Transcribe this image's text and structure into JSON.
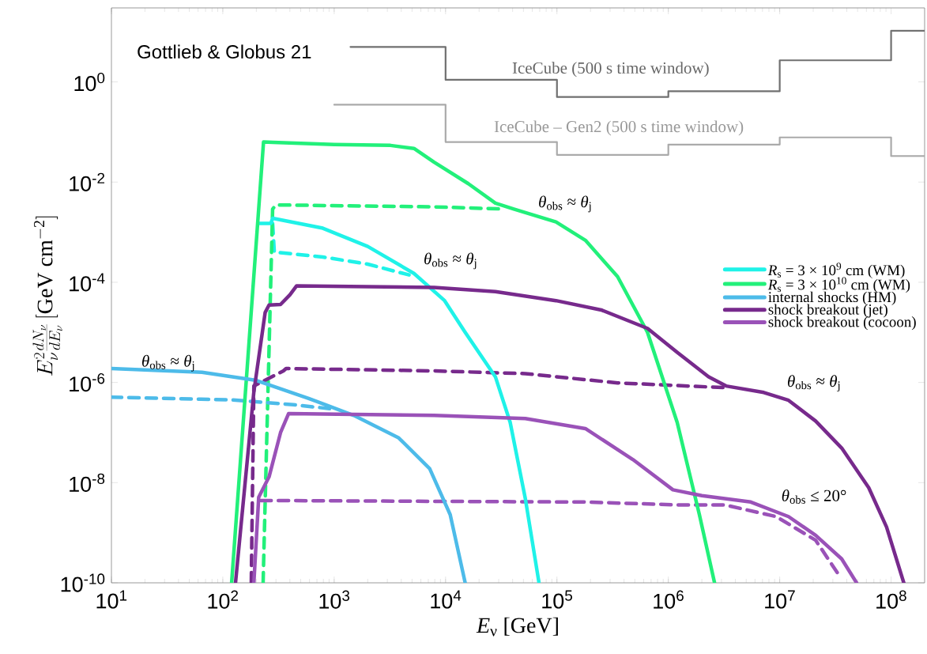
{
  "chart_data": {
    "type": "line",
    "xlabel": "*E*$_{ν}$ [GeV]",
    "ylabel": "E_\\nu^2\\frac{dN_\\nu}{dE_\\nu}\\,[\\mathrm{GeV\\ cm^{-2}}]",
    "log": "xy",
    "xlim": [
      10,
      200000000
    ],
    "ylim": [
      1e-10,
      30
    ],
    "xticks": [
      {
        "value": 10,
        "label": "10$^{1}$"
      },
      {
        "value": 100,
        "label": "10$^{2}$"
      },
      {
        "value": 1000,
        "label": "10$^{3}$"
      },
      {
        "value": 10000,
        "label": "10$^{4}$"
      },
      {
        "value": 100000,
        "label": "10$^{5}$"
      },
      {
        "value": 1000000,
        "label": "10$^{6}$"
      },
      {
        "value": 10000000,
        "label": "10$^{7}$"
      },
      {
        "value": 100000000,
        "label": "10$^{8}$"
      }
    ],
    "yticks": [
      {
        "value": 1e-10,
        "label": "10$^{-10}$"
      },
      {
        "value": 1e-08,
        "label": "10$^{-8}$"
      },
      {
        "value": 1e-06,
        "label": "10$^{-6}$"
      },
      {
        "value": 0.0001,
        "label": "10$^{-4}$"
      },
      {
        "value": 0.01,
        "label": "10$^{-2}$"
      },
      {
        "value": 1,
        "label": "10$^{0}$"
      }
    ],
    "legend": "right",
    "marker": "none",
    "series": [
      {
        "type": "step",
        "color": "#707070",
        "line_style": "solid",
        "x": [
          1400,
          10000,
          100000,
          1000000,
          10000000,
          100000000,
          200000000
        ],
        "values": [
          5.0,
          1.1,
          0.5,
          0.65,
          2.7,
          10.5,
          10.5
        ]
      },
      {
        "type": "step",
        "color": "#aaaaaa",
        "line_style": "solid",
        "x": [
          1000,
          10000,
          100000,
          1000000,
          10000000,
          100000000,
          200000000
        ],
        "values": [
          0.35,
          0.063,
          0.035,
          0.056,
          0.078,
          0.033,
          0.033
        ]
      },
      {
        "color": "#1ff2e8",
        "line_style": "dashed",
        "x": [
          280,
          290,
          790,
          2000,
          4700
        ],
        "values": [
          0.0015,
          0.0004,
          0.00032,
          0.00023,
          0.00014
        ]
      },
      {
        "color": "#22f07a",
        "line_style": "dashed",
        "x": [
          230,
          280,
          300,
          7900,
          34000
        ],
        "values": [
          1e-10,
          0.0029,
          0.0035,
          0.0032,
          0.0029
        ]
      },
      {
        "color": "#4dbbe9",
        "line_style": "dashed",
        "x": [
          10,
          120,
          430,
          910
        ],
        "values": [
          5.1e-07,
          4.5e-07,
          3.6e-07,
          3e-07
        ]
      },
      {
        "color": "#772a8c",
        "line_style": "dashed",
        "x": [
          180,
          190,
          350,
          370,
          7900,
          52000,
          350000,
          3100000
        ],
        "values": [
          1e-10,
          8.5e-07,
          1.7e-06,
          1.9e-06,
          1.7e-06,
          1.5e-06,
          9.8e-07,
          7.9e-07
        ]
      },
      {
        "color": "#9a52b8",
        "line_style": "dashed",
        "x": [
          220,
          180000,
          1200000,
          3200000,
          9300000,
          21000000,
          35000000
        ],
        "values": [
          4.4e-09,
          4.1e-09,
          3.6e-09,
          3.6e-09,
          2.1e-09,
          7.1e-10,
          1.3e-10
        ]
      },
      {
        "name": "*R*$_{s}$ = 3 × 10$^{9}$ cm (WM)",
        "color": "#1ff2e8",
        "line_style": "solid",
        "x": [
          210,
          270,
          280,
          790,
          2000,
          5200,
          9800,
          15000,
          28000,
          38000,
          52000,
          69000
        ],
        "values": [
          0.0015,
          0.0015,
          0.0019,
          0.0012,
          0.00052,
          0.00015,
          4.3e-05,
          1e-05,
          1.3e-06,
          1.6e-07,
          4.8e-09,
          1e-10
        ]
      },
      {
        "name": "*R*$_{s}$ = 3 × 10$^{10}$ cm (WM)",
        "color": "#22f07a",
        "line_style": "solid",
        "x": [
          120,
          232,
          282,
          1000,
          3200,
          5200,
          7900,
          16000,
          28000,
          41000,
          98000,
          180000,
          350000,
          650000,
          1200000,
          1900000,
          2600000
        ],
        "values": [
          1e-10,
          0.063,
          0.062,
          0.056,
          0.054,
          0.047,
          0.025,
          0.0093,
          0.0038,
          0.0029,
          0.0016,
          0.00069,
          0.00013,
          1e-05,
          1.6e-07,
          2.3e-09,
          1e-10
        ]
      },
      {
        "name": "internal shocks (HM)",
        "color": "#4dbbe9",
        "line_style": "solid",
        "x": [
          10,
          65,
          200,
          590,
          1500,
          3800,
          7200,
          11000,
          15000
        ],
        "values": [
          1.9e-06,
          1.6e-06,
          1.1e-06,
          4.8e-07,
          2.2e-07,
          7.8e-08,
          1.9e-08,
          2.3e-09,
          1e-10
        ]
      },
      {
        "name": "shock breakout (jet)",
        "color": "#772a8c",
        "line_style": "solid",
        "x": [
          130,
          190,
          240,
          260,
          330,
          400,
          460,
          7900,
          28000,
          98000,
          250000,
          650000,
          1200000,
          2300000,
          3300000,
          7200000,
          12000000,
          21000000,
          36000000,
          63000000,
          91000000,
          130000000
        ],
        "values": [
          1e-10,
          6.5e-07,
          2.5e-05,
          3.5e-05,
          3.6e-05,
          5.6e-05,
          8.5e-05,
          7.9e-05,
          6.5e-05,
          4.3e-05,
          2.8e-05,
          1.2e-05,
          4e-06,
          1.3e-06,
          8.5e-07,
          6.3e-07,
          4.4e-07,
          1.7e-07,
          4.9e-08,
          7.9e-09,
          1.3e-09,
          1e-10
        ]
      },
      {
        "name": "shock breakout (cocoon)",
        "color": "#9a52b8",
        "line_style": "solid",
        "x": [
          190,
          210,
          260,
          330,
          390,
          7900,
          52000,
          180000,
          480000,
          1100000,
          2000000,
          5500000,
          12000000,
          21000000,
          36000000,
          49000000
        ],
        "values": [
          1e-10,
          5.1e-09,
          1.3e-08,
          1e-07,
          2.4e-07,
          2.2e-07,
          1.9e-07,
          1.2e-07,
          2.9e-08,
          7.2e-09,
          5.5e-09,
          4.1e-09,
          2.1e-09,
          8.9e-10,
          3e-10,
          1e-10
        ]
      }
    ],
    "annotations": [
      "Gottlieb & Globus 21",
      "IceCube (500 s time window)",
      "IceCube – Gen2 (500 s time window)",
      "*θ*$_{obs}$ ≈ *θ*$_{j}$",
      "*θ*$_{obs}$ ≈ *θ*$_{j}$",
      "*θ*$_{obs}$ ≈ *θ*$_{j}$",
      "*θ*$_{obs}$ ≈ *θ*$_{j}$",
      "*θ*$_{obs}$ ≤ 20°"
    ]
  }
}
